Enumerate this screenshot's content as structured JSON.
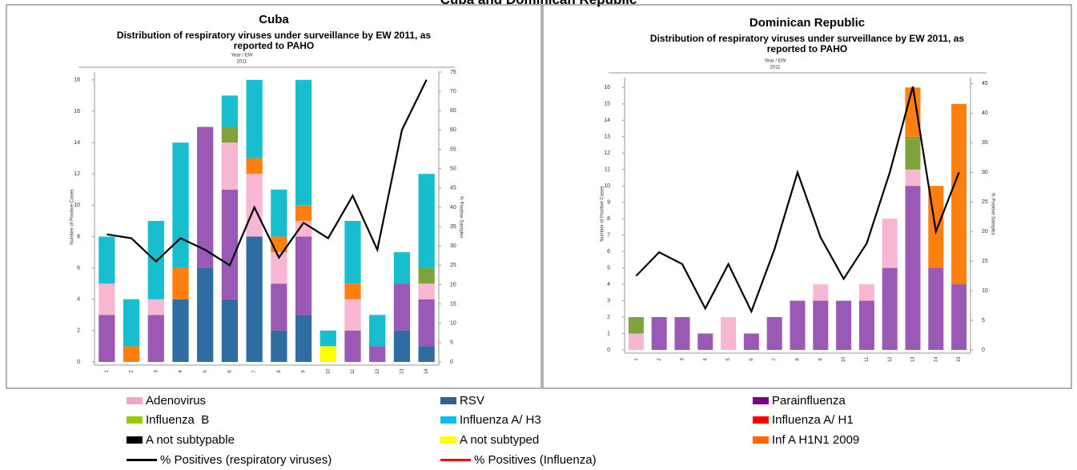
{
  "title": "Cuba and Dominican Republic",
  "chart_data": [
    {
      "type": "bar",
      "title": "Cuba",
      "subtitle": "Distribution of respiratory viruses under surveillance by EW 2011, as reported to PAHO",
      "x_label": "Year / EW",
      "x_group": "2011",
      "y_label": "Number of Positive Cases",
      "y2_label": "% Positive Samples",
      "categories": [
        "1",
        "2",
        "3",
        "4",
        "5",
        "6",
        "7",
        "8",
        "9",
        "10",
        "11",
        "12",
        "13",
        "14"
      ],
      "ylim": [
        0,
        18.5
      ],
      "yticks": [
        0,
        2,
        4,
        6,
        8,
        10,
        12,
        14,
        16,
        18
      ],
      "y2lim": [
        0,
        75
      ],
      "y2ticks": [
        0,
        5,
        10,
        15,
        20,
        25,
        30,
        35,
        40,
        45,
        50,
        55,
        60,
        65,
        70,
        75
      ],
      "series": [
        {
          "name": "RSV",
          "color": "#2e6da4",
          "values": [
            0,
            0,
            0,
            4,
            6,
            4,
            8,
            2,
            3,
            0,
            0,
            0,
            2,
            1
          ]
        },
        {
          "name": "Parainfluenza",
          "color": "#9b59b6",
          "values": [
            3,
            0,
            3,
            0,
            9,
            7,
            0,
            3,
            5,
            0,
            2,
            1,
            3,
            3
          ]
        },
        {
          "name": "Adenovirus",
          "color": "#f7b6d2",
          "values": [
            2,
            0,
            1,
            0,
            0,
            3,
            4,
            2,
            1,
            0,
            2,
            0,
            0,
            1
          ]
        },
        {
          "name": "A not subtyped",
          "color": "#ffff00",
          "values": [
            0,
            0,
            0,
            0,
            0,
            0,
            0,
            0,
            0,
            1,
            0,
            0,
            0,
            0
          ]
        },
        {
          "name": "Inf A H1N1 2009",
          "color": "#ff7f0e",
          "values": [
            0,
            1,
            0,
            2,
            0,
            0,
            1,
            1,
            1,
            0,
            1,
            0,
            0,
            0
          ]
        },
        {
          "name": "Influenza  B",
          "color": "#7fa33a",
          "values": [
            0,
            0,
            0,
            0,
            0,
            1,
            0,
            0,
            0,
            0,
            0,
            0,
            0,
            1
          ]
        },
        {
          "name": "Influenza A/ H3",
          "color": "#17becf",
          "values": [
            3,
            3,
            5,
            8,
            0,
            2,
            5,
            3,
            8,
            1,
            4,
            2,
            2,
            6
          ]
        },
        {
          "name": "% Positives (respiratory viruses)",
          "color": "#000000",
          "axis": "y2",
          "values": [
            33,
            32,
            26,
            32,
            29,
            25,
            40,
            27,
            36,
            32,
            43,
            29,
            60,
            73
          ]
        }
      ]
    },
    {
      "type": "bar",
      "title": "Dominican Republic",
      "subtitle": "Distribution of respiratory viruses under surveillance by EW 2011, as reported to PAHO",
      "x_label": "Year / EW",
      "x_group": "2011",
      "y_label": "Number of Positive Cases",
      "y2_label": "% Positive Samples",
      "categories": [
        "1",
        "2",
        "3",
        "4",
        "5",
        "6",
        "7",
        "8",
        "9",
        "10",
        "11",
        "12",
        "13",
        "14",
        "15"
      ],
      "ylim": [
        0,
        16.6
      ],
      "yticks": [
        0,
        1,
        2,
        3,
        4,
        5,
        6,
        7,
        8,
        9,
        10,
        11,
        12,
        13,
        14,
        15,
        16
      ],
      "y2lim": [
        0,
        46
      ],
      "y2ticks": [
        0,
        5,
        10,
        15,
        20,
        25,
        30,
        35,
        40,
        45
      ],
      "series": [
        {
          "name": "Parainfluenza",
          "color": "#9b59b6",
          "values": [
            0,
            2,
            2,
            1,
            0,
            1,
            2,
            3,
            3,
            3,
            3,
            5,
            10,
            5,
            4
          ]
        },
        {
          "name": "Adenovirus",
          "color": "#f7b6d2",
          "values": [
            1,
            0,
            0,
            0,
            2,
            0,
            0,
            0,
            1,
            0,
            1,
            3,
            1,
            0,
            0
          ]
        },
        {
          "name": "Influenza  B",
          "color": "#7fa33a",
          "values": [
            1,
            0,
            0,
            0,
            0,
            0,
            0,
            0,
            0,
            0,
            0,
            0,
            2,
            0,
            0
          ]
        },
        {
          "name": "Inf A H1N1 2009",
          "color": "#ff7f0e",
          "values": [
            0,
            0,
            0,
            0,
            0,
            0,
            0,
            0,
            0,
            0,
            0,
            0,
            3,
            5,
            11
          ]
        },
        {
          "name": "% Positives (respiratory viruses)",
          "color": "#000000",
          "axis": "y2",
          "values": [
            12.5,
            16.5,
            14.5,
            7,
            14.5,
            6.5,
            17,
            30,
            19,
            12,
            18,
            30,
            44.5,
            20,
            30
          ]
        }
      ]
    }
  ],
  "legend": [
    {
      "name": "Adenovirus",
      "color": "#f4a6c8",
      "style": "box"
    },
    {
      "name": "RSV",
      "color": "#33618f",
      "style": "box"
    },
    {
      "name": "Parainfluenza",
      "color": "#800080",
      "style": "box"
    },
    {
      "name": "Influenza  B",
      "color": "#99cc00",
      "style": "box"
    },
    {
      "name": "Influenza A/ H3",
      "color": "#00c0ec",
      "style": "box"
    },
    {
      "name": "Influenza A/ H1",
      "color": "#ff0000",
      "style": "box"
    },
    {
      "name": "A not subtypable",
      "color": "#000000",
      "style": "box"
    },
    {
      "name": "A not subtyped",
      "color": "#ffff00",
      "style": "box"
    },
    {
      "name": "Inf A H1N1 2009",
      "color": "#ff6600",
      "style": "box"
    },
    {
      "name": "% Positives (respiratory viruses)",
      "color": "#000000",
      "style": "line"
    },
    {
      "name": "% Positives (Influenza)",
      "color": "#ff0000",
      "style": "line"
    }
  ]
}
